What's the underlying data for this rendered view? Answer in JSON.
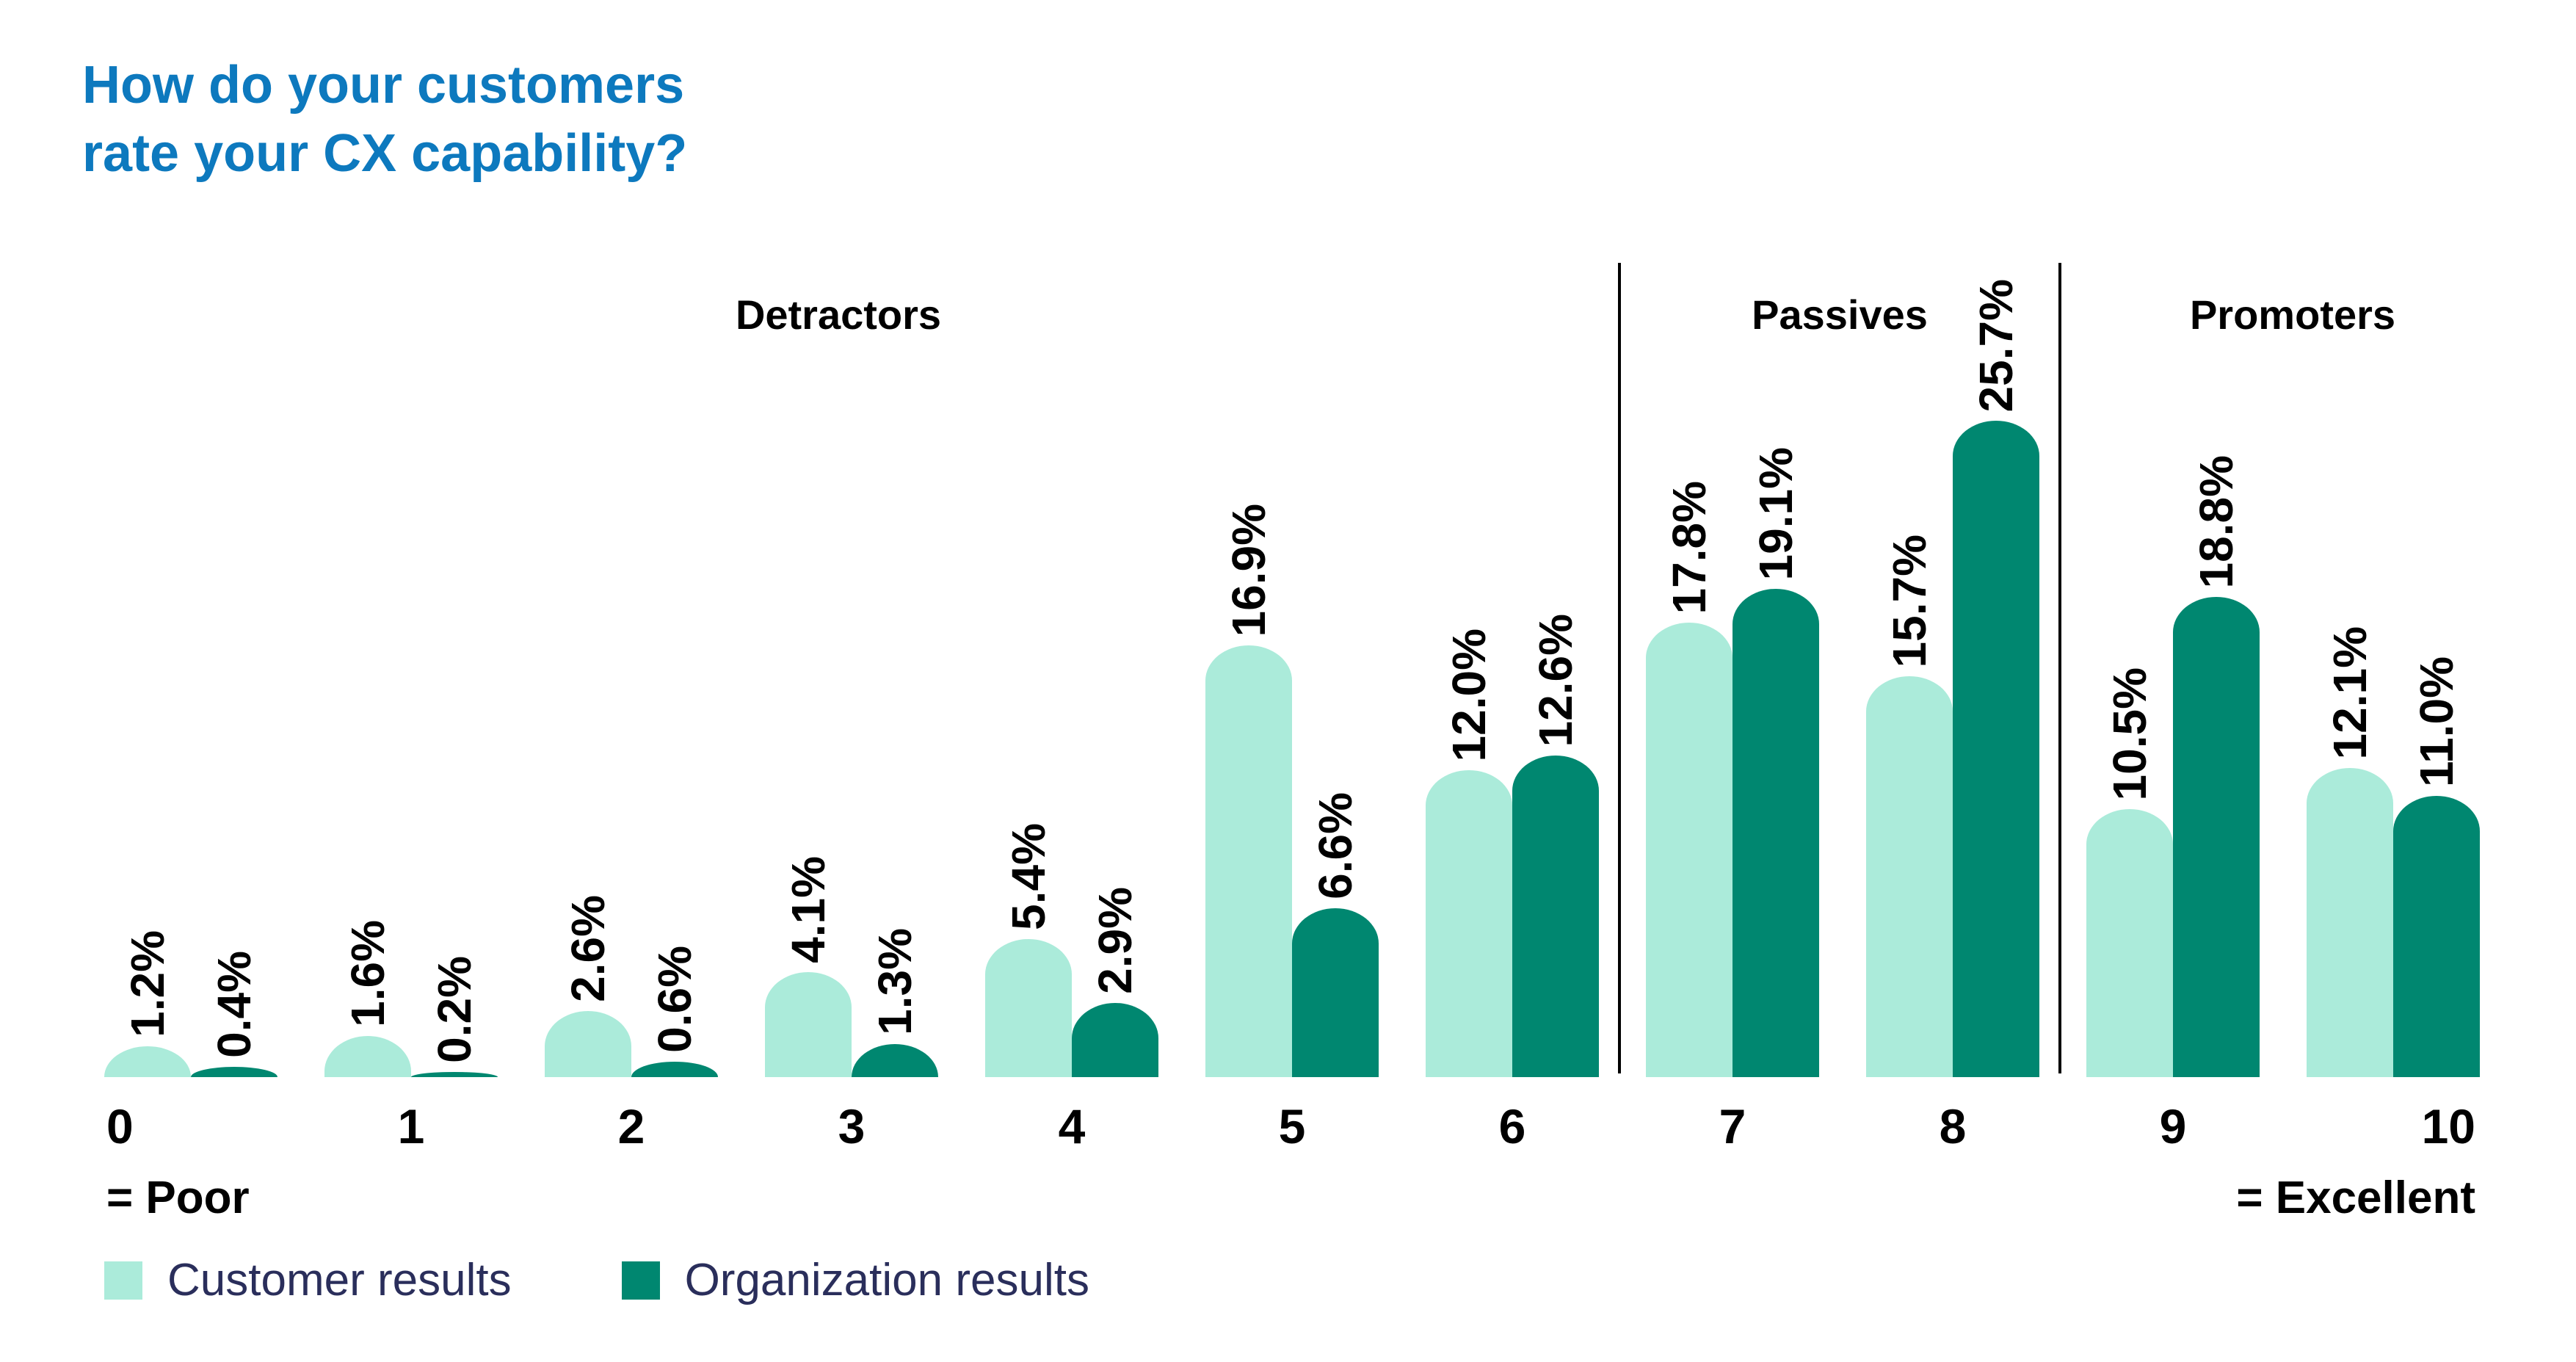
{
  "title": {
    "lines": [
      "How do your customers",
      "rate your CX capability?"
    ],
    "color": "#0d79be"
  },
  "sections": [
    {
      "label": "Detractors"
    },
    {
      "label": "Passives"
    },
    {
      "label": "Promoters"
    }
  ],
  "axis": {
    "left_note": "= Poor",
    "right_note": "= Excellent"
  },
  "legend": [
    {
      "label": "Customer results",
      "color": "#abebda"
    },
    {
      "label": "Organization results",
      "color": "#008770"
    }
  ],
  "chart_data": {
    "type": "bar",
    "title": "How do your customers rate your CX capability?",
    "categories": [
      0,
      1,
      2,
      3,
      4,
      5,
      6,
      7,
      8,
      9,
      10
    ],
    "series": [
      {
        "name": "Customer results",
        "color": "#abebda",
        "values": [
          1.2,
          1.6,
          2.6,
          4.1,
          5.4,
          16.9,
          12.0,
          17.8,
          15.7,
          10.5,
          12.1
        ]
      },
      {
        "name": "Organization results",
        "color": "#008770",
        "values": [
          0.4,
          0.2,
          0.6,
          1.3,
          2.9,
          6.6,
          12.6,
          19.1,
          25.7,
          18.8,
          11.0
        ]
      }
    ],
    "value_label_format": "{value:.1f}%",
    "segments": [
      {
        "label": "Detractors",
        "category_range": [
          0,
          6
        ]
      },
      {
        "label": "Passives",
        "category_range": [
          7,
          8
        ]
      },
      {
        "label": "Promoters",
        "category_range": [
          9,
          10
        ]
      }
    ],
    "x_axis_notes": {
      "0": "= Poor",
      "10": "= Excellent"
    },
    "ylim": [
      0,
      27
    ],
    "grid": false,
    "legend_position": "bottom-left"
  }
}
